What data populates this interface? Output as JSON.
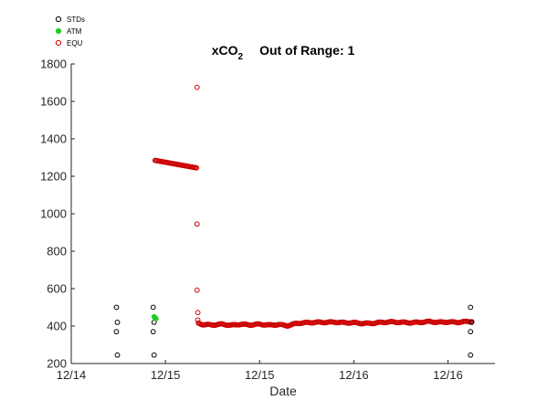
{
  "chart_data": {
    "type": "scatter",
    "title": {
      "main": "xCO",
      "subscript": "2",
      "suffix": "Out of Range: 1"
    },
    "xlabel": "Date",
    "ylabel": "",
    "x_unit": "days since 12/14 00:00 (axis tick labels shown as dates)",
    "xlim": [
      0,
      2.25
    ],
    "ylim": [
      200,
      1800
    ],
    "x_ticks": [
      0,
      0.5,
      1,
      1.5,
      2
    ],
    "x_tick_labels": [
      "12/14",
      "12/15",
      "12/15",
      "12/16",
      "12/16"
    ],
    "y_ticks": [
      200,
      400,
      600,
      800,
      1000,
      1200,
      1400,
      1600,
      1800
    ],
    "y_tick_labels": [
      "200",
      "400",
      "600",
      "800",
      "1000",
      "1200",
      "1400",
      "1600",
      "1800"
    ],
    "grid": false,
    "legend_position": "top-left",
    "series": [
      {
        "name": "STDs",
        "marker": "open-circle",
        "color": "#000000",
        "points": [
          [
            0.24,
            500
          ],
          [
            0.245,
            420
          ],
          [
            0.24,
            370
          ],
          [
            0.245,
            245
          ],
          [
            0.435,
            500
          ],
          [
            0.44,
            420
          ],
          [
            0.435,
            370
          ],
          [
            0.44,
            245
          ],
          [
            2.12,
            500
          ],
          [
            2.125,
            420
          ],
          [
            2.12,
            370
          ],
          [
            2.12,
            245
          ]
        ]
      },
      {
        "name": "ATM",
        "marker": "filled-circle",
        "color": "#22cc22",
        "points": [
          [
            0.44,
            450
          ],
          [
            0.445,
            445
          ],
          [
            0.45,
            440
          ]
        ]
      },
      {
        "name": "EQU",
        "marker": "open-circle",
        "color": "#cc0000",
        "segments": [
          {
            "x_start": 0.445,
            "x_end": 0.665,
            "y_start": 1285,
            "y_end": 1245,
            "step": 0.0055
          },
          {
            "x_start": 0.675,
            "x_end": 2.13,
            "baseline": 412,
            "step": 0.0055,
            "profile": [
              [
                0.675,
                415
              ],
              [
                0.7,
                408
              ],
              [
                0.75,
                406
              ],
              [
                0.8,
                410
              ],
              [
                0.85,
                404
              ],
              [
                0.9,
                410
              ],
              [
                0.95,
                406
              ],
              [
                1.0,
                410
              ],
              [
                1.05,
                405
              ],
              [
                1.1,
                408
              ],
              [
                1.15,
                402
              ],
              [
                1.2,
                415
              ],
              [
                1.25,
                418
              ],
              [
                1.3,
                420
              ],
              [
                1.35,
                420
              ],
              [
                1.4,
                421
              ],
              [
                1.45,
                418
              ],
              [
                1.5,
                418
              ],
              [
                1.55,
                414
              ],
              [
                1.6,
                415
              ],
              [
                1.65,
                420
              ],
              [
                1.7,
                422
              ],
              [
                1.75,
                420
              ],
              [
                1.8,
                418
              ],
              [
                1.85,
                420
              ],
              [
                1.9,
                424
              ],
              [
                1.95,
                420
              ],
              [
                2.0,
                422
              ],
              [
                2.05,
                420
              ],
              [
                2.1,
                424
              ],
              [
                2.13,
                425
              ]
            ]
          }
        ],
        "extra_points": [
          [
            0.668,
            1675
          ],
          [
            0.668,
            945
          ],
          [
            0.668,
            592
          ],
          [
            0.672,
            472
          ],
          [
            0.672,
            432
          ]
        ]
      }
    ]
  }
}
